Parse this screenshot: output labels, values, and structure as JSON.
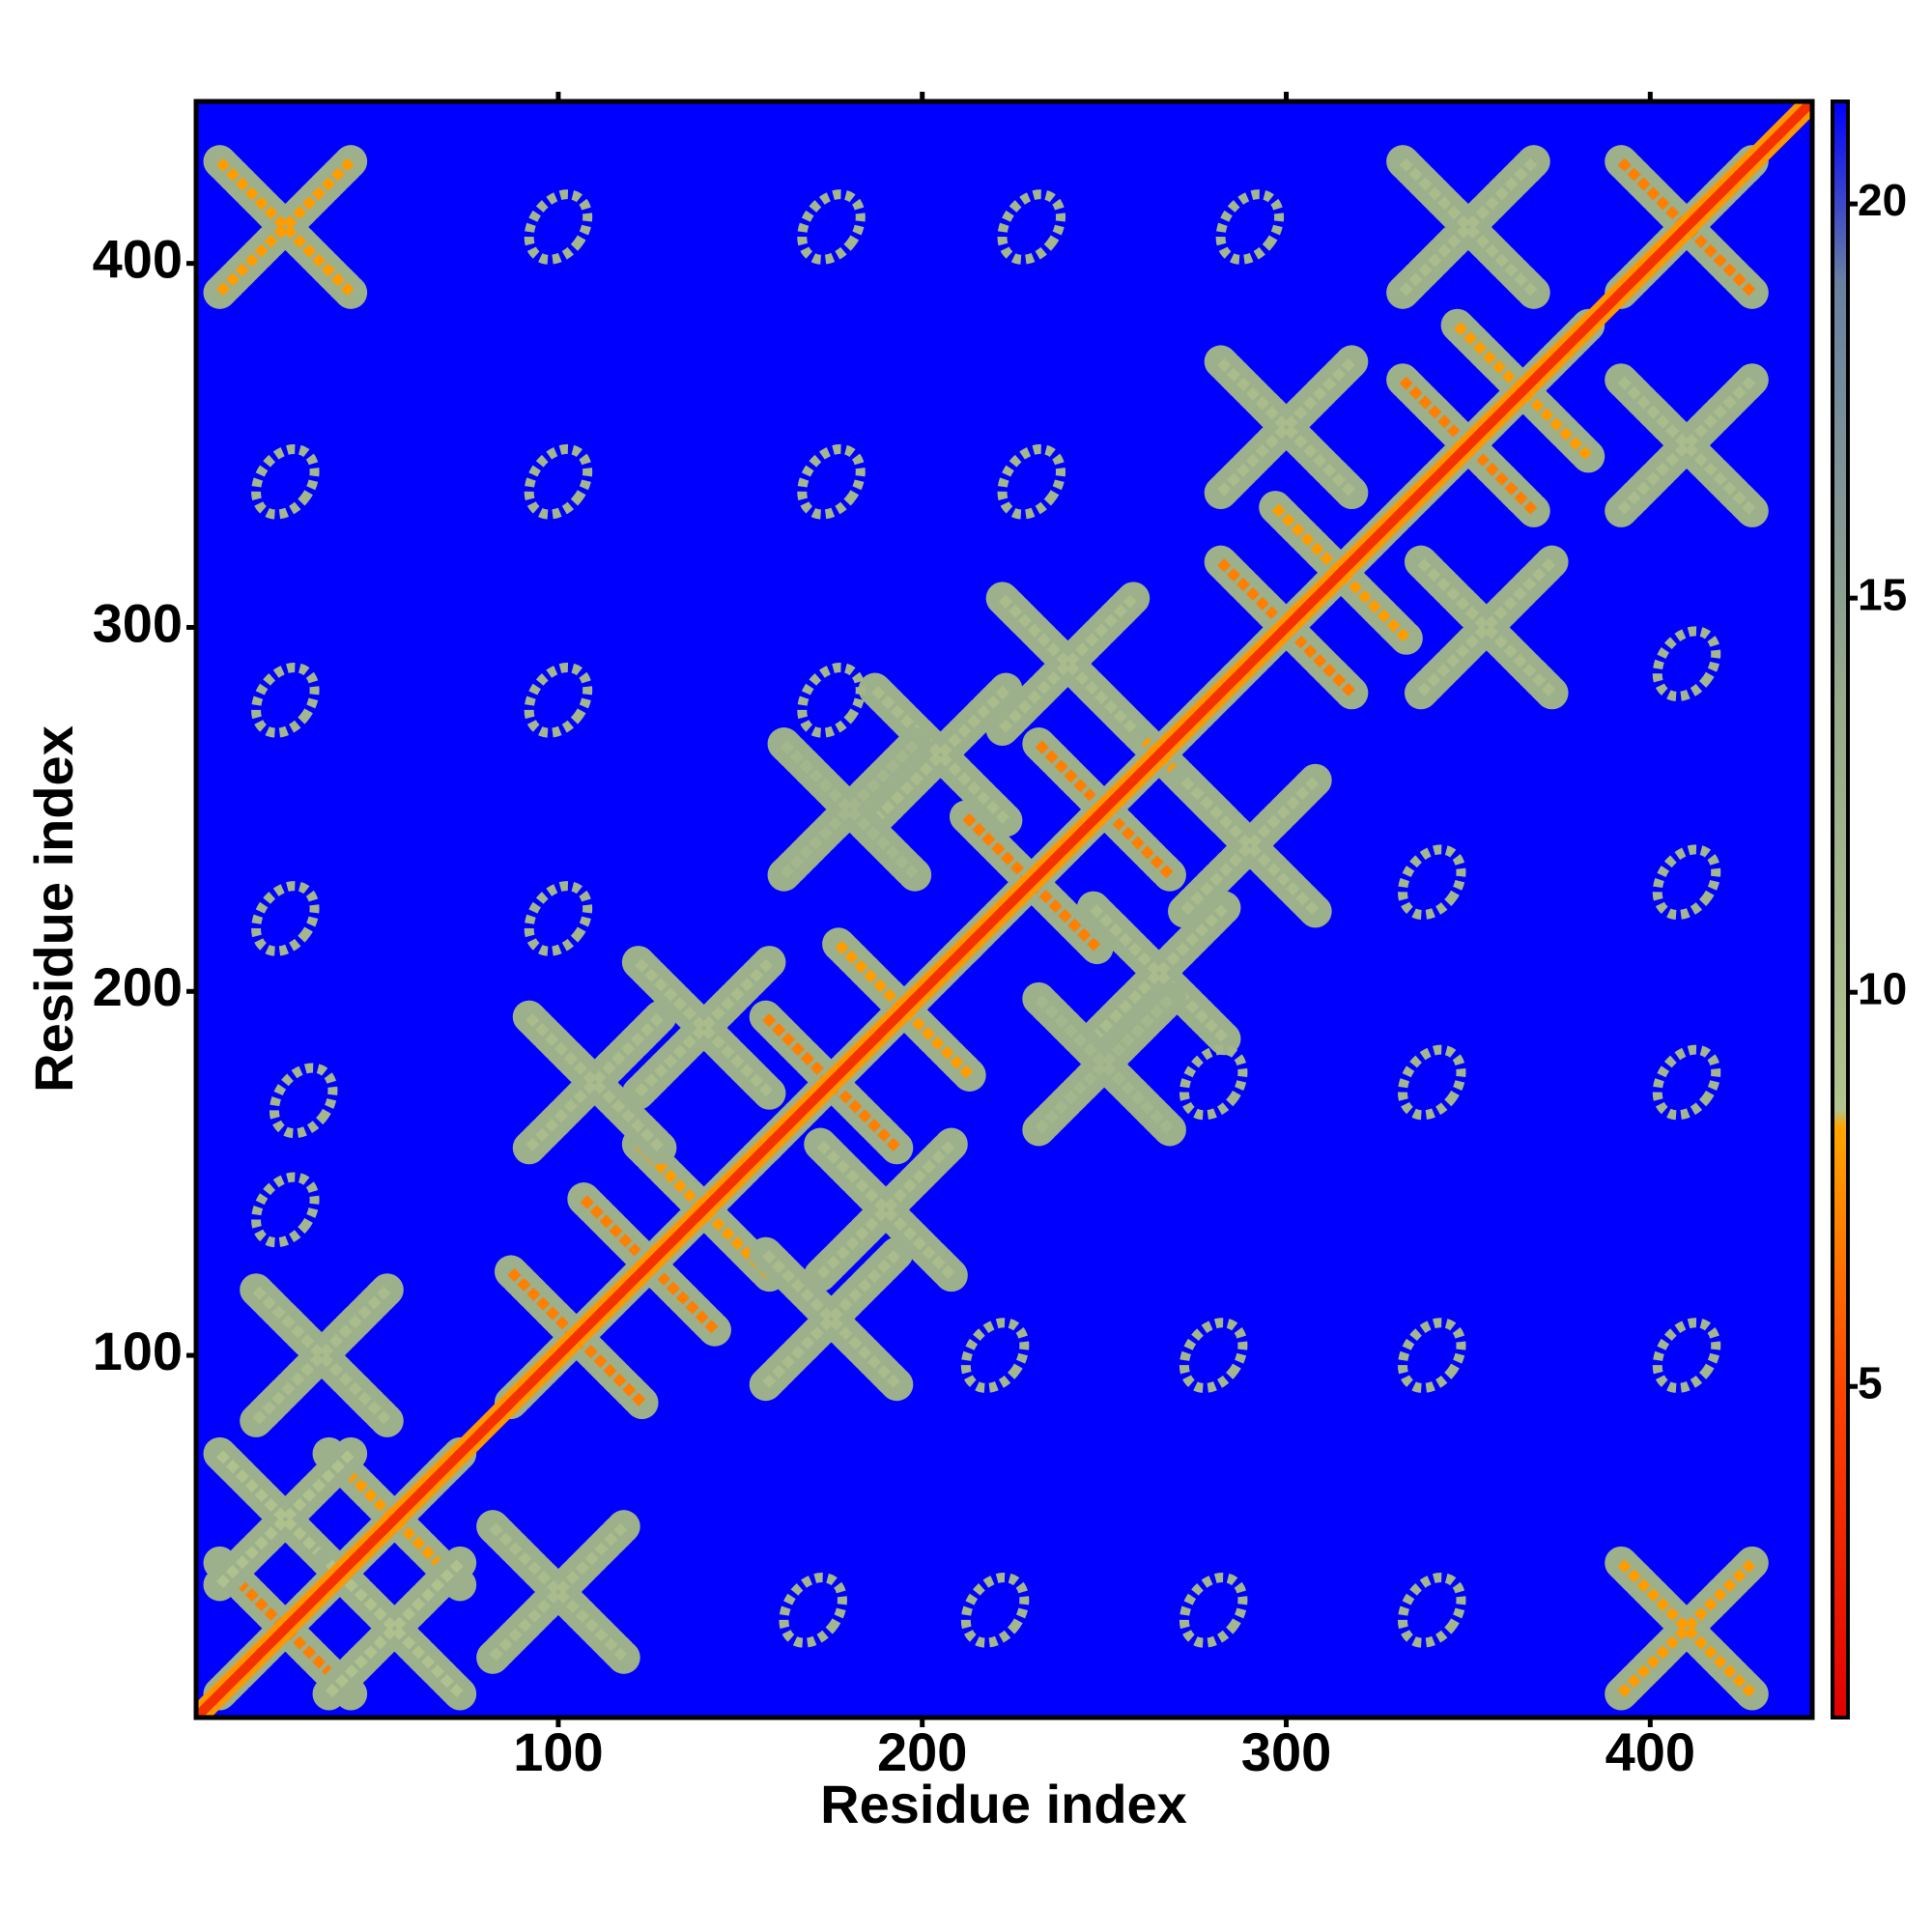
{
  "chart_data": {
    "type": "heatmap",
    "x_label": "Residue index",
    "y_label": "Residue index",
    "xlim": [
      0.5,
      444.5
    ],
    "ylim": [
      0.5,
      444.5
    ],
    "xticks": [
      100,
      200,
      300,
      400
    ],
    "yticks": [
      100,
      200,
      300,
      400
    ],
    "background_value": 21.3,
    "diagonal_value": 3.8,
    "zlim": [
      0.8,
      21.3
    ],
    "zticks": [
      5,
      10,
      15,
      20
    ],
    "colorscale": [
      [
        0.8,
        "#e00000"
      ],
      [
        5,
        "#ff4500"
      ],
      [
        8.3,
        "#ffa500"
      ],
      [
        8.5,
        "#b2c48c"
      ],
      [
        14,
        "#94a88c"
      ],
      [
        19,
        "#6a80a0"
      ],
      [
        21.3,
        "#0000ff"
      ]
    ],
    "clusters": [
      {
        "x": 25,
        "y": 25,
        "z": 4
      },
      {
        "x": 55,
        "y": 55,
        "z": 5
      },
      {
        "x": 105,
        "y": 105,
        "z": 4
      },
      {
        "x": 125,
        "y": 125,
        "z": 4
      },
      {
        "x": 140,
        "y": 140,
        "z": 5
      },
      {
        "x": 175,
        "y": 175,
        "z": 4
      },
      {
        "x": 195,
        "y": 195,
        "z": 5
      },
      {
        "x": 230,
        "y": 230,
        "z": 4
      },
      {
        "x": 250,
        "y": 250,
        "z": 4
      },
      {
        "x": 265,
        "y": 265,
        "z": 5
      },
      {
        "x": 300,
        "y": 300,
        "z": 4
      },
      {
        "x": 315,
        "y": 315,
        "z": 5
      },
      {
        "x": 350,
        "y": 350,
        "z": 4
      },
      {
        "x": 365,
        "y": 365,
        "z": 5
      },
      {
        "x": 410,
        "y": 410,
        "z": 4
      },
      {
        "x": 25,
        "y": 55,
        "z": 6
      },
      {
        "x": 55,
        "y": 25,
        "z": 6
      },
      {
        "x": 35,
        "y": 100,
        "z": 7
      },
      {
        "x": 100,
        "y": 35,
        "z": 7
      },
      {
        "x": 110,
        "y": 175,
        "z": 7
      },
      {
        "x": 175,
        "y": 110,
        "z": 7
      },
      {
        "x": 140,
        "y": 190,
        "z": 7
      },
      {
        "x": 190,
        "y": 140,
        "z": 7
      },
      {
        "x": 205,
        "y": 265,
        "z": 7
      },
      {
        "x": 265,
        "y": 205,
        "z": 7
      },
      {
        "x": 180,
        "y": 250,
        "z": 8
      },
      {
        "x": 250,
        "y": 180,
        "z": 8
      },
      {
        "x": 240,
        "y": 290,
        "z": 7
      },
      {
        "x": 290,
        "y": 240,
        "z": 7
      },
      {
        "x": 300,
        "y": 355,
        "z": 7
      },
      {
        "x": 355,
        "y": 300,
        "z": 7
      },
      {
        "x": 350,
        "y": 410,
        "z": 7
      },
      {
        "x": 410,
        "y": 350,
        "z": 7
      },
      {
        "x": 25,
        "y": 410,
        "z": 5
      },
      {
        "x": 410,
        "y": 25,
        "z": 5
      },
      {
        "x": 25,
        "y": 140,
        "z": 11
      },
      {
        "x": 25,
        "y": 220,
        "z": 11
      },
      {
        "x": 25,
        "y": 280,
        "z": 11
      },
      {
        "x": 25,
        "y": 340,
        "z": 11
      },
      {
        "x": 100,
        "y": 220,
        "z": 11
      },
      {
        "x": 100,
        "y": 280,
        "z": 11
      },
      {
        "x": 100,
        "y": 340,
        "z": 11
      },
      {
        "x": 100,
        "y": 410,
        "z": 11
      },
      {
        "x": 175,
        "y": 280,
        "z": 11
      },
      {
        "x": 175,
        "y": 340,
        "z": 11
      },
      {
        "x": 175,
        "y": 410,
        "z": 11
      },
      {
        "x": 230,
        "y": 340,
        "z": 11
      },
      {
        "x": 230,
        "y": 410,
        "z": 11
      },
      {
        "x": 290,
        "y": 410,
        "z": 11
      },
      {
        "x": 220,
        "y": 100,
        "z": 11
      },
      {
        "x": 280,
        "y": 100,
        "z": 11
      },
      {
        "x": 340,
        "y": 100,
        "z": 11
      },
      {
        "x": 410,
        "y": 100,
        "z": 11
      },
      {
        "x": 220,
        "y": 30,
        "z": 11
      },
      {
        "x": 280,
        "y": 30,
        "z": 11
      },
      {
        "x": 340,
        "y": 30,
        "z": 11
      },
      {
        "x": 410,
        "y": 175,
        "z": 11
      },
      {
        "x": 410,
        "y": 230,
        "z": 11
      },
      {
        "x": 410,
        "y": 290,
        "z": 11
      },
      {
        "x": 340,
        "y": 175,
        "z": 11
      },
      {
        "x": 340,
        "y": 230,
        "z": 11
      },
      {
        "x": 280,
        "y": 175,
        "z": 11
      },
      {
        "x": 170,
        "y": 30,
        "z": 11
      },
      {
        "x": 30,
        "y": 170,
        "z": 11
      }
    ]
  }
}
